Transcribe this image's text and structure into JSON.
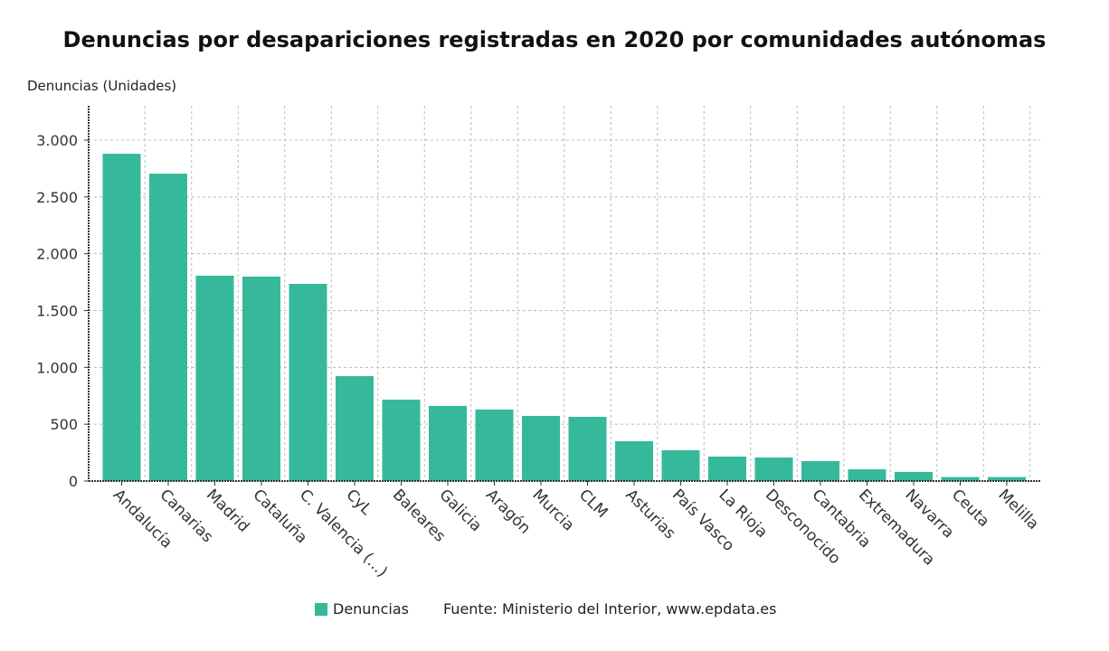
{
  "chart_data": {
    "type": "bar",
    "title": "Denuncias por desapariciones registradas en 2020 por comunidades autónomas",
    "ylabel": "Denuncias (Unidades)",
    "xlabel": "",
    "ylim": [
      0,
      3300
    ],
    "yticks": [
      0,
      500,
      1000,
      1500,
      2000,
      2500,
      3000
    ],
    "ytick_labels": [
      "0",
      "500",
      "1.000",
      "1.500",
      "2.000",
      "2.500",
      "3.000"
    ],
    "grid": true,
    "legend_position": "bottom",
    "categories": [
      "Andalucía",
      "Canarias",
      "Madrid",
      "Cataluña",
      "C. Valencia (...)",
      "CyL",
      "Baleares",
      "Galicia",
      "Aragón",
      "Murcia",
      "CLM",
      "Asturias",
      "País Vasco",
      "La Rioja",
      "Desconocido",
      "Cantabria",
      "Extremadura",
      "Navarra",
      "Ceuta",
      "Melilla"
    ],
    "series": [
      {
        "name": "Denuncias",
        "color": "#36b99a",
        "values": [
          2880,
          2705,
          1807,
          1799,
          1735,
          923,
          716,
          661,
          629,
          573,
          565,
          350,
          271,
          215,
          207,
          175,
          103,
          80,
          35,
          35
        ]
      }
    ]
  },
  "source": "Fuente: Ministerio del Interior, www.epdata.es"
}
